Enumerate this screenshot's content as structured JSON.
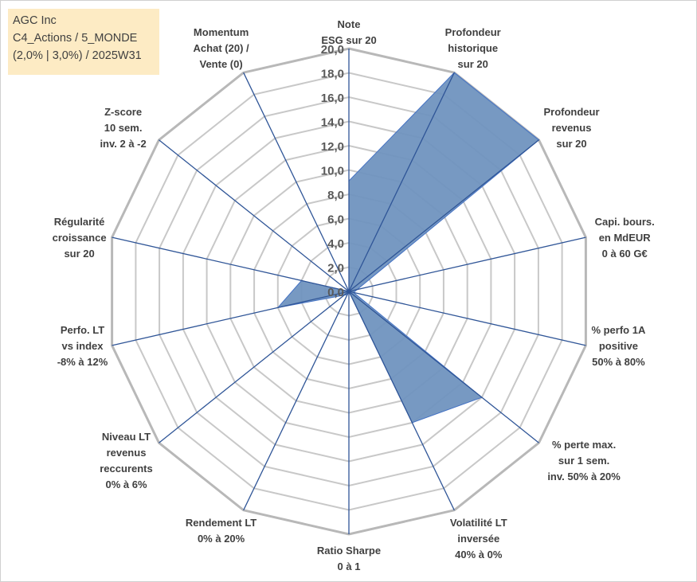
{
  "title_lines": [
    "AGC Inc",
    "C4_Actions / 5_MONDE",
    "(2,0% | 3,0%) / 2025W31"
  ],
  "colors": {
    "fill": "#7094bf",
    "line": "#4472c4",
    "axis": "#2f5597",
    "grid": "#c8c8c8",
    "outer": "#b8b8b8",
    "title_bg": "#fdebc4"
  },
  "chart_data": {
    "type": "radar",
    "title": "AGC Inc",
    "rmin": 0,
    "rmax": 20,
    "ticks": [
      "0,0",
      "2,0",
      "4,0",
      "6,0",
      "8,0",
      "10,0",
      "12,0",
      "14,0",
      "16,0",
      "18,0",
      "20,0"
    ],
    "axes": [
      {
        "label": [
          "Note",
          "ESG sur 20"
        ],
        "value": 9.1
      },
      {
        "label": [
          "Profondeur",
          "historique",
          "sur 20"
        ],
        "value": 20.0
      },
      {
        "label": [
          "Profondeur",
          "revenus",
          "sur 20"
        ],
        "value": 20.0
      },
      {
        "label": [
          "Capi. bours.",
          "en MdEUR",
          "0 à 60 G€"
        ],
        "value": 0.7
      },
      {
        "label": [
          "% perfo 1A",
          "positive",
          "50% à 80%"
        ],
        "value": 0.4
      },
      {
        "label": [
          "% perte max.",
          "sur 1 sem.",
          "inv. 50% à 20%"
        ],
        "value": 14.0
      },
      {
        "label": [
          "Volatilité LT",
          "inversée",
          "40% à 0%"
        ],
        "value": 12.0
      },
      {
        "label": [
          "Ratio Sharpe",
          "0 à 1"
        ],
        "value": 0.0
      },
      {
        "label": [
          "Rendement LT",
          "0% à 20%"
        ],
        "value": 0.3
      },
      {
        "label": [
          "Niveau LT",
          "revenus",
          "reccurents",
          "0% à 6%"
        ],
        "value": 0.5
      },
      {
        "label": [
          "Perfo. LT",
          "vs index",
          "-8% à 12%"
        ],
        "value": 6.0
      },
      {
        "label": [
          "Régularité",
          "croissance",
          "sur 20"
        ],
        "value": 4.0
      },
      {
        "label": [
          "Z-score",
          "10 sem.",
          "inv. 2 à -2"
        ],
        "value": 0.0
      },
      {
        "label": [
          "Momentum",
          "Achat (20) /",
          "Vente (0)"
        ],
        "value": 0.0
      }
    ]
  }
}
